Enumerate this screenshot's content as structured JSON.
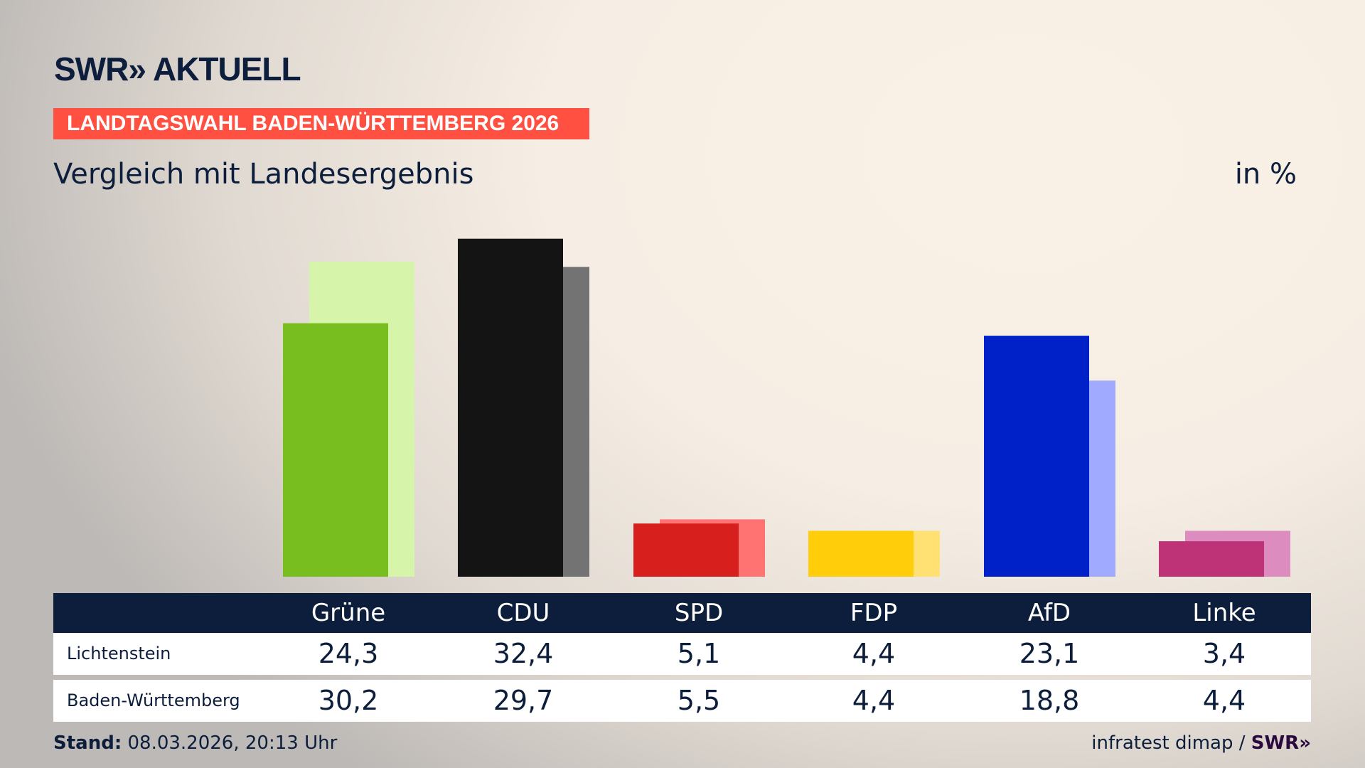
{
  "header": {
    "logo": "SWR» AKTUELL",
    "banner": "LANDTAGSWAHL BADEN-WÜRTTEMBERG 2026",
    "subtitle": "Vergleich mit Landesergebnis",
    "unit": "in %"
  },
  "colors": {
    "navy": "#0c1e3c",
    "banner": "#ff5041"
  },
  "chart_data": {
    "type": "bar",
    "categories": [
      "Grüne",
      "CDU",
      "SPD",
      "FDP",
      "AfD",
      "Linke"
    ],
    "series": [
      {
        "name": "Lichtenstein",
        "values": [
          24.3,
          32.4,
          5.1,
          4.4,
          23.1,
          3.4
        ],
        "colors": [
          "#78be1e",
          "#141414",
          "#d7201e",
          "#ffcd0a",
          "#0020c8",
          "#be3278"
        ]
      },
      {
        "name": "Baden-Württemberg",
        "values": [
          30.2,
          29.7,
          5.5,
          4.4,
          18.8,
          4.4
        ],
        "colors": [
          "#d7f5aa",
          "#737373",
          "#ff7373",
          "#ffe173",
          "#a0aaff",
          "#dc8cbe"
        ]
      }
    ],
    "ylim": [
      0,
      32.4
    ],
    "grid": false,
    "legend": "table-below"
  },
  "table": {
    "rows": [
      {
        "label": "Lichtenstein",
        "values": [
          "24,3",
          "32,4",
          "5,1",
          "4,4",
          "23,1",
          "3,4"
        ]
      },
      {
        "label": "Baden-Württemberg",
        "values": [
          "30,2",
          "29,7",
          "5,5",
          "4,4",
          "18,8",
          "4,4"
        ]
      }
    ]
  },
  "footer": {
    "stand_label": "Stand:",
    "stand_value": "08.03.2026, 20:13 Uhr",
    "source": "infratest dimap /",
    "source_logo": "SWR»"
  }
}
